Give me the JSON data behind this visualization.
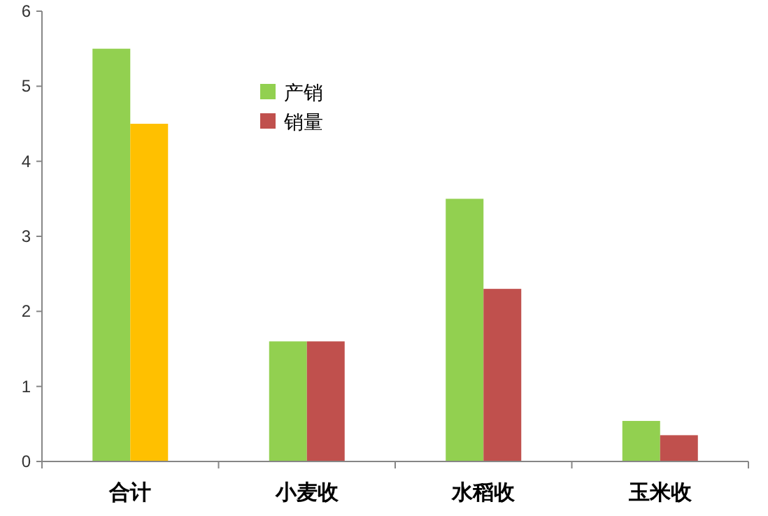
{
  "chart_data": {
    "type": "bar",
    "categories": [
      "合计",
      "小麦收",
      "水稻收",
      "玉米收"
    ],
    "series": [
      {
        "name": "产销",
        "color": "#92d050",
        "values": [
          5.5,
          1.6,
          3.5,
          0.54
        ]
      },
      {
        "name": "销量",
        "color": "#c0504d",
        "colors": [
          "#ffc000",
          "#c0504d",
          "#c0504d",
          "#c0504d"
        ],
        "values": [
          4.5,
          1.6,
          2.3,
          0.35
        ]
      }
    ],
    "ylim": [
      0,
      6
    ],
    "yticks": [
      0,
      1,
      2,
      3,
      4,
      5,
      6
    ],
    "grid": false,
    "legend": "top"
  }
}
